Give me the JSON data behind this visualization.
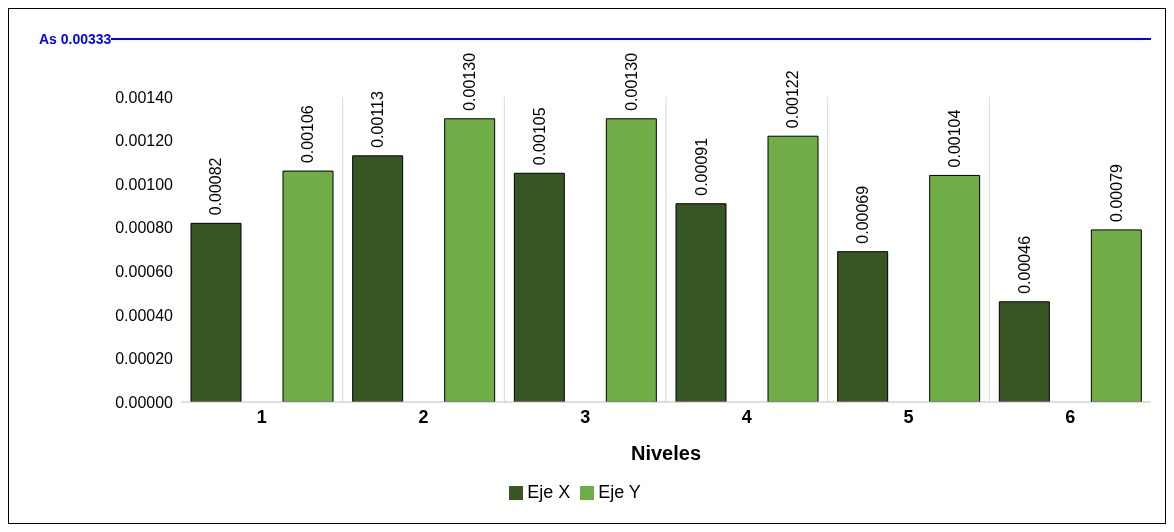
{
  "chart_data": {
    "type": "bar",
    "xlabel": "Niveles",
    "categories": [
      "1",
      "2",
      "3",
      "4",
      "5",
      "6"
    ],
    "series": [
      {
        "name": "Eje X",
        "color": "#375623",
        "values": [
          0.00082,
          0.00113,
          0.00105,
          0.00091,
          0.00069,
          0.00046
        ],
        "value_labels": [
          "0.00082",
          "0.00113",
          "0.00105",
          "0.00091",
          "0.00069",
          "0.00046"
        ]
      },
      {
        "name": "Eje Y",
        "color": "#70ad47",
        "values": [
          0.00106,
          0.0013,
          0.0013,
          0.00122,
          0.00104,
          0.00079
        ],
        "value_labels": [
          "0.00106",
          "0.00130",
          "0.00130",
          "0.00122",
          "0.00104",
          "0.00079"
        ]
      }
    ],
    "ylim": [
      0,
      0.0014
    ],
    "yticks": [
      {
        "value": 0,
        "label": "0.00000"
      },
      {
        "value": 0.0002,
        "label": "0.00020"
      },
      {
        "value": 0.0004,
        "label": "0.00040"
      },
      {
        "value": 0.0006,
        "label": "0.00060"
      },
      {
        "value": 0.0008,
        "label": "0.00080"
      },
      {
        "value": 0.001,
        "label": "0.00100"
      },
      {
        "value": 0.0012,
        "label": "0.00120"
      },
      {
        "value": 0.0014,
        "label": "0.00140"
      }
    ],
    "annotations": [
      "As 0.00333"
    ],
    "grid": "x",
    "legend": "bottom"
  }
}
